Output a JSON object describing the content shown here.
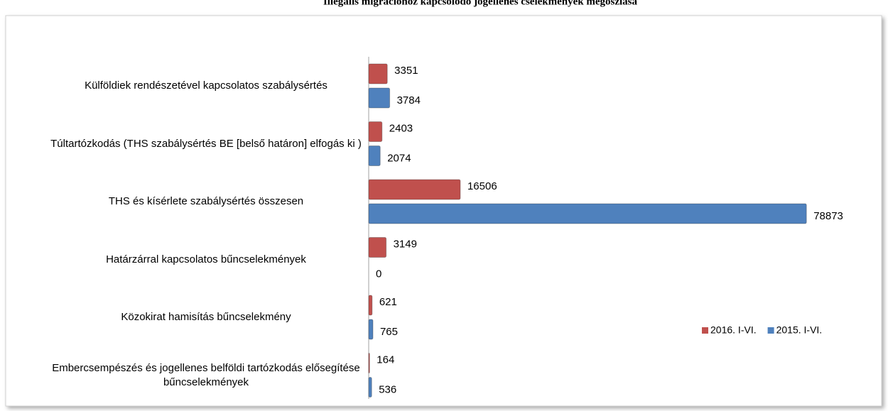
{
  "chart_data": {
    "type": "bar",
    "orientation": "horizontal",
    "title": "Illegális migrációhoz kapcsolódó jogellenes cselekmények megoszlása",
    "categories": [
      "Külföldiek rendészetével kapcsolatos szabálysértés",
      "Túltartózkodás (THS szabálysértés BE [belső határon] elfogás ki )",
      "THS és kísérlete szabálysértés összesen",
      "Határzárral kapcsolatos bűncselekmények",
      "Közokirat hamisítás bűncselekmény",
      "Embercsempészés és jogellenes belföldi tartózkodás elősegítése bűncselekmények"
    ],
    "series": [
      {
        "name": "2016. I-VI.",
        "color": "#c0504d",
        "values": [
          3351,
          2403,
          16506,
          3149,
          621,
          164
        ]
      },
      {
        "name": "2015. I-VI.",
        "color": "#4f81bd",
        "values": [
          3784,
          2074,
          78873,
          0,
          765,
          536
        ]
      }
    ],
    "xlim": [
      0,
      80000
    ],
    "legend": "right"
  }
}
